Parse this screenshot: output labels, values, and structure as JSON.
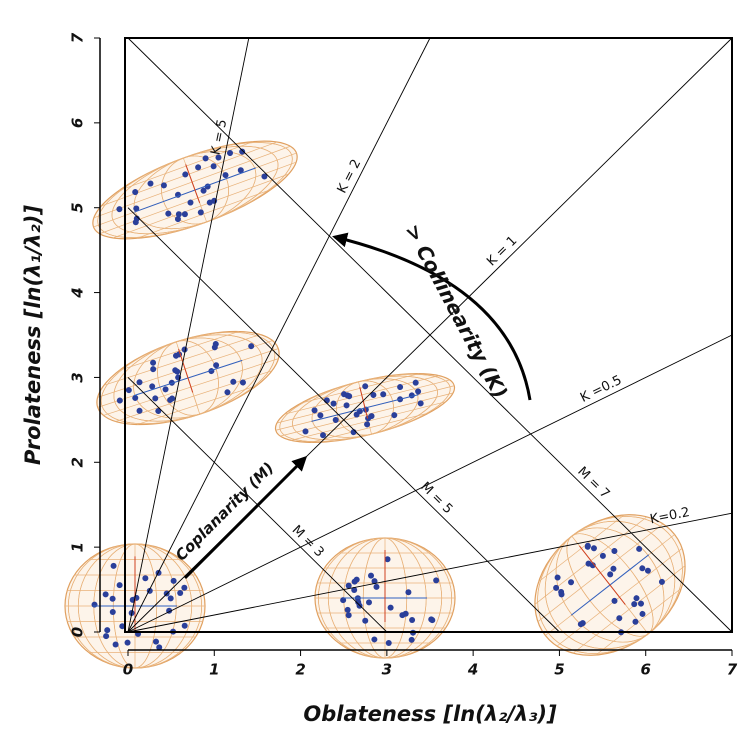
{
  "chart_data": {
    "type": "diagram",
    "x_label": "Oblateness  [ln(λ₂/λ₃)]",
    "y_label": "Prolateness [ln(λ₁/λ₂)]",
    "xlim": [
      0,
      7
    ],
    "ylim": [
      0,
      7
    ],
    "xticks": [
      0,
      1,
      2,
      3,
      4,
      5,
      6,
      7
    ],
    "yticks": [
      0,
      1,
      2,
      3,
      4,
      5,
      6,
      7
    ],
    "k_lines": [
      {
        "label": "K = 5",
        "slope": 5
      },
      {
        "label": "K = 2",
        "slope": 2
      },
      {
        "label": "K = 1",
        "slope": 1
      },
      {
        "label": "K =0.5",
        "slope": 0.5
      },
      {
        "label": "K=0.2",
        "slope": 0.2
      }
    ],
    "m_lines": [
      {
        "label": "M = 3",
        "sum": 3
      },
      {
        "label": "M = 5",
        "sum": 5
      },
      {
        "label": "M = 7",
        "sum": 7
      }
    ],
    "annotations": [
      "Coplanarity (M)",
      "> Collinearity (K)"
    ]
  }
}
